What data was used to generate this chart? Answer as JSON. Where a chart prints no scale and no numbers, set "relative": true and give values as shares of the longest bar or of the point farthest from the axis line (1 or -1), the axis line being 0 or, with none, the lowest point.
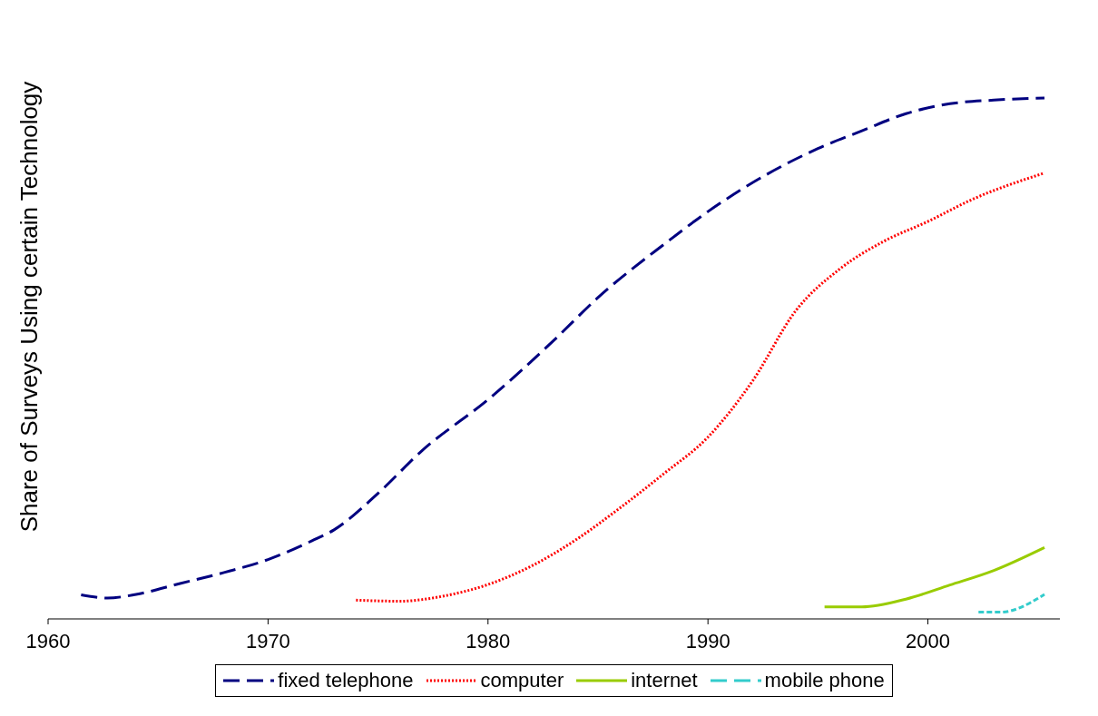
{
  "chart_data": {
    "type": "line",
    "relative": true,
    "ylabel": "Share of Surveys Using certain Technology",
    "xlim": [
      1960,
      2006
    ],
    "xticks": [
      1960,
      1970,
      1980,
      1990,
      2000
    ],
    "legend": "bottom",
    "grid": false,
    "marker": "none",
    "series": [
      {
        "name": "fixed telephone",
        "color": "#000080",
        "line_style": "dashed",
        "x": [
          1961.5,
          1962.7,
          1964,
          1966,
          1968,
          1970,
          1972,
          1973,
          1975,
          1977,
          1980,
          1983,
          1985,
          1988,
          1990,
          1993,
          1995,
          1997,
          1999,
          2001,
          2003,
          2005.3
        ],
        "values": [
          0.046,
          0.04,
          0.047,
          0.068,
          0.089,
          0.114,
          0.15,
          0.171,
          0.241,
          0.323,
          0.421,
          0.535,
          0.617,
          0.719,
          0.782,
          0.861,
          0.903,
          0.937,
          0.97,
          0.989,
          0.996,
          1.0
        ]
      },
      {
        "name": "computer",
        "color": "#ff0000",
        "line_style": "dotted",
        "x": [
          1974,
          1976,
          1978,
          1980,
          1982,
          1984,
          1986,
          1988,
          1990,
          1992,
          1994,
          1996,
          1998,
          2000,
          2002,
          2005.3
        ],
        "values": [
          0.036,
          0.034,
          0.044,
          0.066,
          0.102,
          0.152,
          0.213,
          0.279,
          0.349,
          0.455,
          0.592,
          0.672,
          0.725,
          0.763,
          0.805,
          0.856
        ]
      },
      {
        "name": "internet",
        "color": "#99cc00",
        "line_style": "solid",
        "x": [
          1995.3,
          1997,
          1999,
          2001,
          2003,
          2005.3
        ],
        "values": [
          0.023,
          0.023,
          0.038,
          0.065,
          0.093,
          0.137
        ]
      },
      {
        "name": "mobile phone",
        "color": "#33cccc",
        "line_style": "dashed",
        "x": [
          2002.3,
          2003.3,
          2005.3
        ],
        "values": [
          0.013,
          0.013,
          0.047
        ]
      }
    ]
  }
}
